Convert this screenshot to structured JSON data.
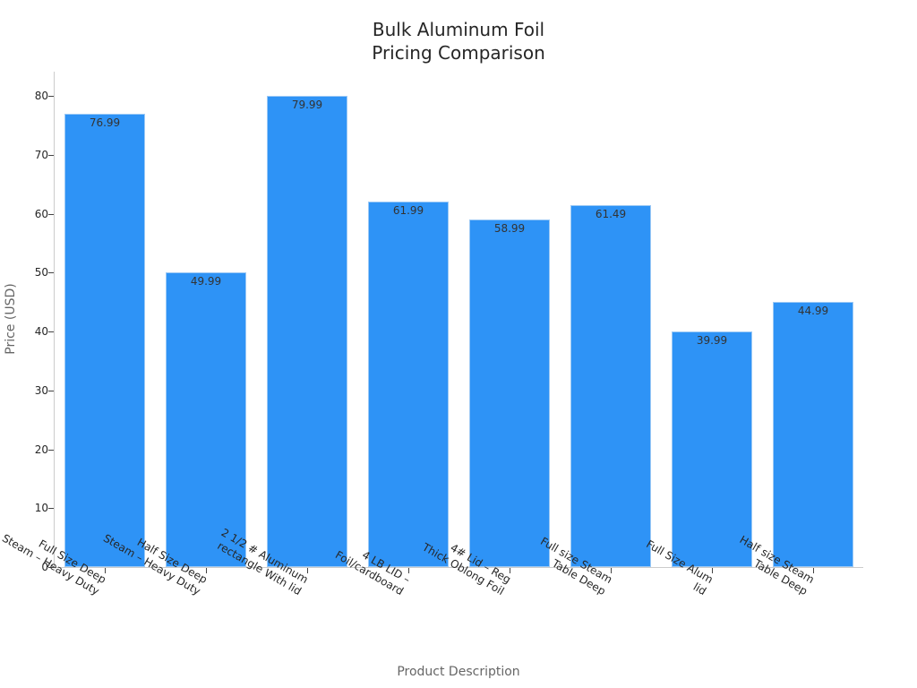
{
  "chart_data": {
    "type": "bar",
    "title": "Bulk Aluminum Foil\nPricing Comparison",
    "title_lines": [
      "Bulk Aluminum Foil",
      "Pricing Comparison"
    ],
    "xlabel": "Product Description",
    "ylabel": "Price (USD)",
    "ylim": [
      0,
      84
    ],
    "yticks": [
      0,
      10,
      20,
      30,
      40,
      50,
      60,
      70,
      80
    ],
    "grid": false,
    "legend": null,
    "bar_color": "#2e93f6",
    "categories": [
      "Full Size Deep\nSteam – Heavy Duty",
      "Half Size Deep\nSteam – Heavy Duty",
      "2 1/2 # Aluminum\nrectangle With lid",
      "4 LB LID –\nFoil/cardboard",
      "4# Lid – Reg\nThick Oblong Foil",
      "Full size Steam\nTable Deep",
      "Full Size Alum\nlid",
      "Half size Steam\nTable Deep"
    ],
    "values": [
      76.99,
      49.99,
      79.99,
      61.99,
      58.99,
      61.49,
      39.99,
      44.99
    ],
    "value_labels": [
      "76.99",
      "49.99",
      "79.99",
      "61.99",
      "58.99",
      "61.49",
      "39.99",
      "44.99"
    ]
  }
}
